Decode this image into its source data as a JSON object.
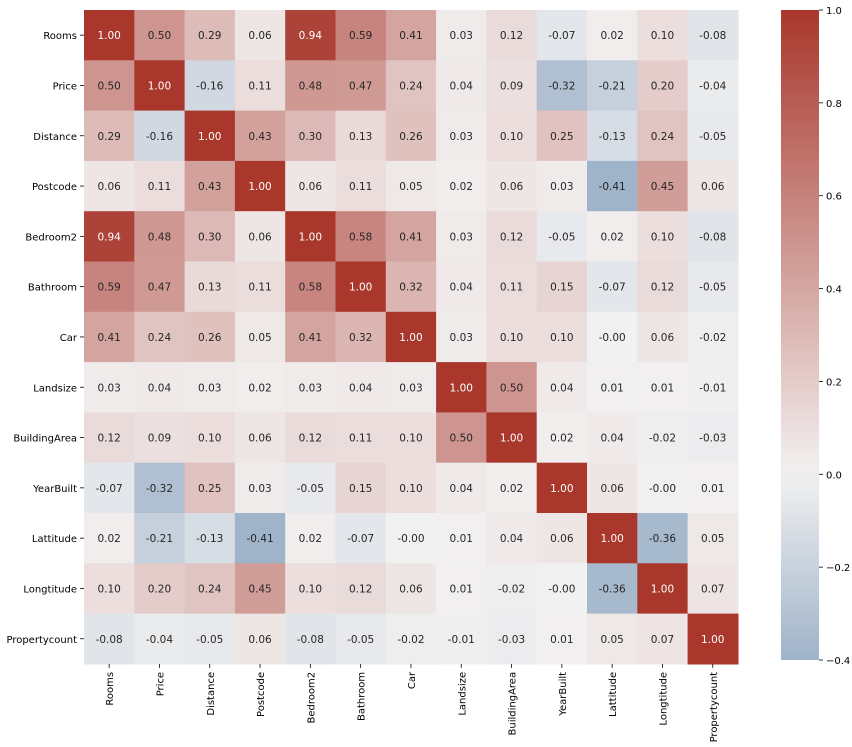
{
  "chart_data": {
    "type": "heatmap",
    "title": "",
    "xlabel": "",
    "ylabel": "",
    "variables": [
      "Rooms",
      "Price",
      "Distance",
      "Postcode",
      "Bedroom2",
      "Bathroom",
      "Car",
      "Landsize",
      "BuildingArea",
      "YearBuilt",
      "Lattitude",
      "Longtitude",
      "Propertycount"
    ],
    "values": [
      [
        "1.00",
        "0.50",
        "0.29",
        "0.06",
        "0.94",
        "0.59",
        "0.41",
        "0.03",
        "0.12",
        "-0.07",
        "0.02",
        "0.10",
        "-0.08"
      ],
      [
        "0.50",
        "1.00",
        "-0.16",
        "0.11",
        "0.48",
        "0.47",
        "0.24",
        "0.04",
        "0.09",
        "-0.32",
        "-0.21",
        "0.20",
        "-0.04"
      ],
      [
        "0.29",
        "-0.16",
        "1.00",
        "0.43",
        "0.30",
        "0.13",
        "0.26",
        "0.03",
        "0.10",
        "0.25",
        "-0.13",
        "0.24",
        "-0.05"
      ],
      [
        "0.06",
        "0.11",
        "0.43",
        "1.00",
        "0.06",
        "0.11",
        "0.05",
        "0.02",
        "0.06",
        "0.03",
        "-0.41",
        "0.45",
        "0.06"
      ],
      [
        "0.94",
        "0.48",
        "0.30",
        "0.06",
        "1.00",
        "0.58",
        "0.41",
        "0.03",
        "0.12",
        "-0.05",
        "0.02",
        "0.10",
        "-0.08"
      ],
      [
        "0.59",
        "0.47",
        "0.13",
        "0.11",
        "0.58",
        "1.00",
        "0.32",
        "0.04",
        "0.11",
        "0.15",
        "-0.07",
        "0.12",
        "-0.05"
      ],
      [
        "0.41",
        "0.24",
        "0.26",
        "0.05",
        "0.41",
        "0.32",
        "1.00",
        "0.03",
        "0.10",
        "0.10",
        "-0.00",
        "0.06",
        "-0.02"
      ],
      [
        "0.03",
        "0.04",
        "0.03",
        "0.02",
        "0.03",
        "0.04",
        "0.03",
        "1.00",
        "0.50",
        "0.04",
        "0.01",
        "0.01",
        "-0.01"
      ],
      [
        "0.12",
        "0.09",
        "0.10",
        "0.06",
        "0.12",
        "0.11",
        "0.10",
        "0.50",
        "1.00",
        "0.02",
        "0.04",
        "-0.02",
        "-0.03"
      ],
      [
        "-0.07",
        "-0.32",
        "0.25",
        "0.03",
        "-0.05",
        "0.15",
        "0.10",
        "0.04",
        "0.02",
        "1.00",
        "0.06",
        "-0.00",
        "0.01"
      ],
      [
        "0.02",
        "-0.21",
        "-0.13",
        "-0.41",
        "0.02",
        "-0.07",
        "-0.00",
        "0.01",
        "0.04",
        "0.06",
        "1.00",
        "-0.36",
        "0.05"
      ],
      [
        "0.10",
        "0.20",
        "0.24",
        "0.45",
        "0.10",
        "0.12",
        "0.06",
        "0.01",
        "-0.02",
        "-0.00",
        "-0.36",
        "1.00",
        "0.07"
      ],
      [
        "-0.08",
        "-0.04",
        "-0.05",
        "0.06",
        "-0.08",
        "-0.05",
        "-0.02",
        "-0.01",
        "-0.03",
        "0.01",
        "0.05",
        "0.07",
        "1.00"
      ]
    ],
    "colorbar": {
      "range": [
        -0.4,
        1.0
      ],
      "ticks": [
        "1.0",
        "0.8",
        "0.6",
        "0.4",
        "0.2",
        "0.0",
        "−0.2",
        "−0.4"
      ],
      "tick_values": [
        1.0,
        0.8,
        0.6,
        0.4,
        0.2,
        0.0,
        -0.2,
        -0.4
      ],
      "colors": {
        "negative": "#9fb3c9",
        "neutral": "#f2f1f1",
        "positive": "#a9372c"
      }
    },
    "grid": false,
    "legend": "colorbar-right"
  }
}
